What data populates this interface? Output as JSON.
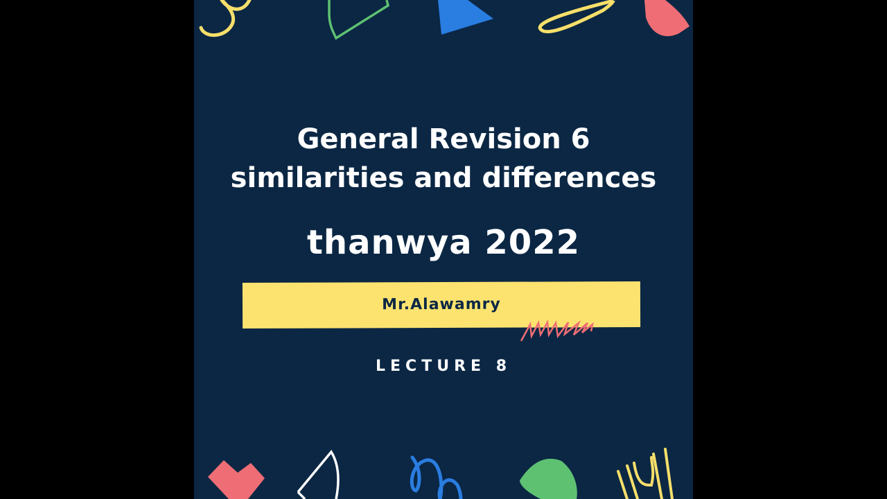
{
  "slide": {
    "title_line1": "General Revision 6",
    "title_line2": "similarities and differences",
    "subtitle": "thanwya 2022",
    "author": "Mr.Alawamry",
    "lecture": "LECTURE 8"
  },
  "colors": {
    "background": "#0b2744",
    "banner": "#fce36f",
    "yellow": "#f6df6a",
    "green": "#5ec172",
    "blue": "#2a7de1",
    "pink": "#ef6d74",
    "white": "#ffffff"
  }
}
